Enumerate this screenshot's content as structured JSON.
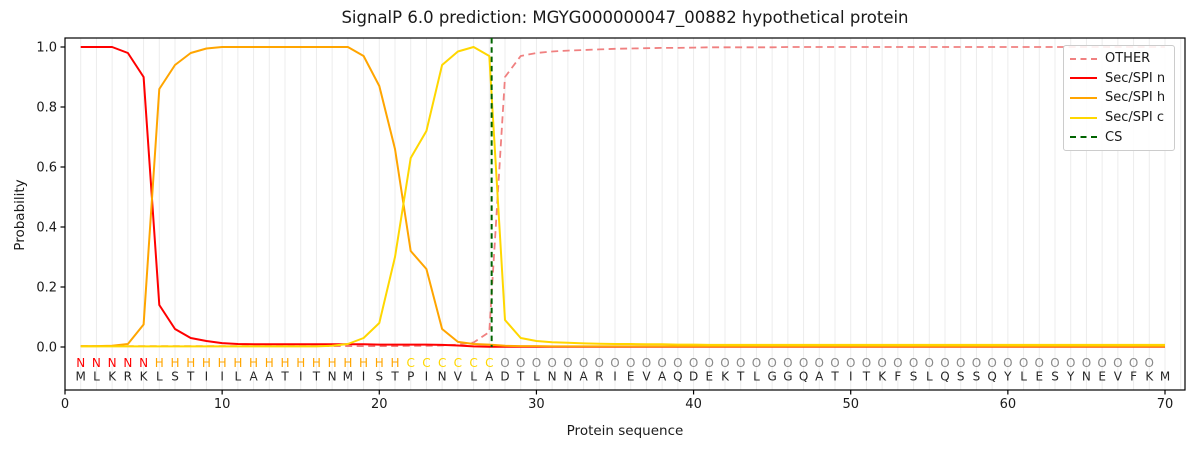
{
  "title": "SignalP 6.0 prediction: MGYG000000047_00882 hypothetical protein",
  "chart_data": {
    "type": "line",
    "xlabel": "Protein sequence",
    "ylabel": "Probability",
    "x_ticks": [
      0,
      10,
      20,
      30,
      40,
      50,
      60,
      70
    ],
    "y_ticks": [
      0.0,
      0.2,
      0.4,
      0.6,
      0.8,
      1.0
    ],
    "xlim": [
      0,
      71.3
    ],
    "ylim": [
      -0.14,
      1.03
    ],
    "grid": "vertical lines at every residue position",
    "legend_position": "upper right",
    "x": "residue positions 1-70",
    "series": [
      {
        "name": "OTHER",
        "color": "#f08080",
        "style": "dashed",
        "values": [
          0.003,
          0.003,
          0.003,
          0.003,
          0.003,
          0.003,
          0.003,
          0.003,
          0.003,
          0.003,
          0.003,
          0.003,
          0.003,
          0.003,
          0.003,
          0.003,
          0.003,
          0.003,
          0.003,
          0.003,
          0.003,
          0.004,
          0.004,
          0.005,
          0.008,
          0.015,
          0.05,
          0.9,
          0.97,
          0.98,
          0.985,
          0.988,
          0.99,
          0.992,
          0.994,
          0.995,
          0.996,
          0.997,
          0.997,
          0.998,
          0.999,
          0.999,
          0.999,
          0.999,
          0.999,
          1,
          1,
          1,
          1,
          1,
          1,
          1,
          1,
          1,
          1,
          1,
          1,
          1,
          1,
          1,
          1,
          1,
          1,
          1,
          1,
          1,
          1,
          1,
          1,
          1
        ]
      },
      {
        "name": "Sec/SPI n",
        "color": "#ff0000",
        "style": "solid",
        "values": [
          1,
          1,
          1,
          0.98,
          0.9,
          0.14,
          0.06,
          0.03,
          0.02,
          0.013,
          0.01,
          0.009,
          0.009,
          0.009,
          0.009,
          0.009,
          0.009,
          0.009,
          0.009,
          0.008,
          0.008,
          0.008,
          0.008,
          0.007,
          0.005,
          0.002,
          0.001,
          0.001,
          0.001,
          0.001,
          0.001,
          0.001,
          0.001,
          0.001,
          0.001,
          0.001,
          0.001,
          0.001,
          0.001,
          0.001,
          0.001,
          0.001,
          0.001,
          0.001,
          0.001,
          0.001,
          0.001,
          0.001,
          0.001,
          0.001,
          0.001,
          0.001,
          0.001,
          0.001,
          0.001,
          0.001,
          0.001,
          0.001,
          0.001,
          0.001,
          0.001,
          0.001,
          0.001,
          0.001,
          0.001,
          0.001,
          0.001,
          0.001,
          0.001,
          0.001
        ]
      },
      {
        "name": "Sec/SPI h",
        "color": "#ffa500",
        "style": "solid",
        "values": [
          0.003,
          0.003,
          0.004,
          0.01,
          0.075,
          0.86,
          0.94,
          0.98,
          0.995,
          1,
          1,
          1,
          1,
          1,
          1,
          1,
          1,
          1,
          0.97,
          0.87,
          0.66,
          0.32,
          0.26,
          0.06,
          0.017,
          0.01,
          0.008,
          0.004,
          0.003,
          0.003,
          0.002,
          0.002,
          0.002,
          0.002,
          0.002,
          0.002,
          0.002,
          0.002,
          0.002,
          0.002,
          0.002,
          0.002,
          0.002,
          0.002,
          0.002,
          0.002,
          0.002,
          0.002,
          0.002,
          0.002,
          0.002,
          0.002,
          0.002,
          0.002,
          0.002,
          0.002,
          0.002,
          0.002,
          0.002,
          0.002,
          0.002,
          0.002,
          0.002,
          0.002,
          0.002,
          0.002,
          0.002,
          0.002,
          0.002,
          0.002
        ]
      },
      {
        "name": "Sec/SPI c",
        "color": "#ffd700",
        "style": "solid",
        "values": [
          0.002,
          0.002,
          0.002,
          0.002,
          0.002,
          0.002,
          0.002,
          0.002,
          0.002,
          0.002,
          0.002,
          0.002,
          0.002,
          0.002,
          0.002,
          0.002,
          0.004,
          0.01,
          0.03,
          0.08,
          0.3,
          0.63,
          0.72,
          0.94,
          0.985,
          1,
          0.97,
          0.09,
          0.03,
          0.02,
          0.016,
          0.014,
          0.012,
          0.011,
          0.01,
          0.01,
          0.009,
          0.009,
          0.008,
          0.008,
          0.007,
          0.007,
          0.007,
          0.007,
          0.007,
          0.007,
          0.007,
          0.007,
          0.007,
          0.007,
          0.007,
          0.007,
          0.007,
          0.007,
          0.007,
          0.007,
          0.007,
          0.007,
          0.007,
          0.007,
          0.007,
          0.007,
          0.007,
          0.007,
          0.007,
          0.007,
          0.007,
          0.007,
          0.007,
          0.007
        ]
      },
      {
        "name": "CS",
        "color": "#006400",
        "style": "dashed",
        "type": "vline",
        "position": 27.15
      }
    ],
    "sequence": "MLKRKLSTIILAATITNMISTPINVLADTLNNARIEVAQDEKTLGGQATITKFSLQSSQYLESYNEVFKM",
    "residue_classes": "NNNNNHHHHHHHHHHHHHHHHCCCCCCOOOOOOOOOOOOOOOOOOOOOOOOOOOOOOOOOOOOOOOOOO",
    "class_colors": {
      "N": "#ff0000",
      "H": "#ffa500",
      "C": "#ffd700",
      "O": "#8a8a8a"
    },
    "sequence_color": "#262626",
    "cs_position_label": "between residues 27 and 28"
  }
}
